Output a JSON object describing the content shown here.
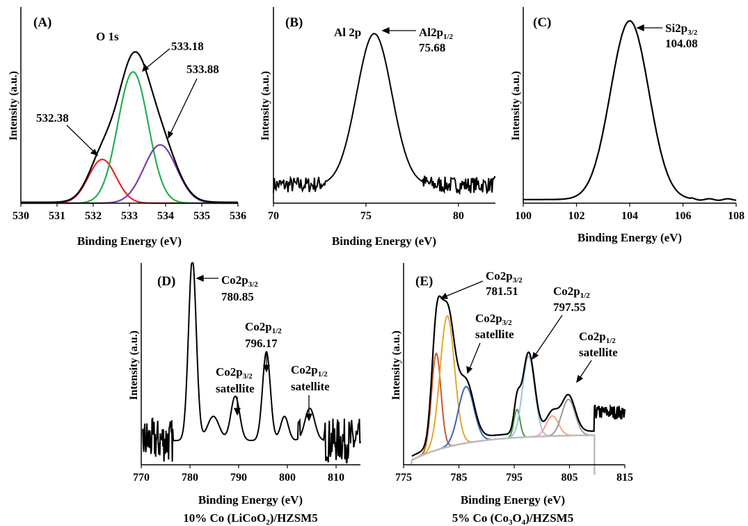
{
  "chart_data": [
    {
      "panel": "A",
      "type": "line",
      "label": "(A)",
      "peak_label": "O 1s",
      "xlabel": "Binding Energy (eV)",
      "ylabel": "Intensity (a.u.)",
      "xlim": [
        530,
        536
      ],
      "xticks": [
        "530",
        "531",
        "532",
        "533",
        "534",
        "535",
        "536"
      ],
      "colors": {
        "envelope": "#000000",
        "c532": "#e8262b",
        "c533": "#22b14c",
        "c534": "#7b3fa0"
      },
      "components": [
        {
          "center": 532.25,
          "height": 0.24,
          "sigma": 0.38,
          "color": "#e8262b"
        },
        {
          "center": 533.1,
          "height": 0.72,
          "sigma": 0.42,
          "color": "#22b14c"
        },
        {
          "center": 533.85,
          "height": 0.32,
          "sigma": 0.45,
          "color": "#7b3fa0"
        }
      ],
      "annotations": [
        {
          "text": "532.38",
          "x": 532.25,
          "y": 0.24
        },
        {
          "text": "533.18",
          "x": 533.1,
          "y": 0.72
        },
        {
          "text": "533.88",
          "x": 533.85,
          "y": 0.32
        }
      ]
    },
    {
      "panel": "B",
      "type": "line",
      "label": "(B)",
      "peak_label": "Al 2p",
      "xlabel": "Binding Energy (eV)",
      "ylabel": "Intensity (a.u.)",
      "xlim": [
        70,
        82
      ],
      "xticks": [
        "70",
        "75",
        "80"
      ],
      "peak": {
        "center": 75.45,
        "height": 0.83,
        "sigma": 0.95,
        "baseline": 0.1
      },
      "annotation": {
        "main": "Al2p",
        "sub": "1/2",
        "value": "75.68"
      }
    },
    {
      "panel": "C",
      "type": "line",
      "label": "(C)",
      "xlabel": "Binding Energy (eV)",
      "ylabel": "Intensity (a.u.)",
      "xlim": [
        100,
        108
      ],
      "xticks": [
        "100",
        "102",
        "104",
        "106",
        "108"
      ],
      "peak": {
        "center": 104.0,
        "height": 0.98,
        "sigma": 0.72,
        "baseline": 0.02
      },
      "annotation": {
        "main": "Si2p",
        "sub": "3/2",
        "value": "104.08"
      }
    },
    {
      "panel": "D",
      "type": "line",
      "label": "(D)",
      "xlabel": "Binding Energy (eV)",
      "ylabel": "Intensity (a.u.)",
      "caption_pre": "10% Co (LiCoO",
      "caption_sub": "2",
      "caption_post": ")/HZSM5",
      "xlim": [
        770,
        815
      ],
      "xticks": [
        "770",
        "780",
        "790",
        "800",
        "810"
      ],
      "peaks": [
        {
          "center": 780.5,
          "height": 0.9,
          "sigma": 0.8
        },
        {
          "center": 784.8,
          "height": 0.12,
          "sigma": 1.2
        },
        {
          "center": 789.3,
          "height": 0.22,
          "sigma": 0.9
        },
        {
          "center": 795.7,
          "height": 0.44,
          "sigma": 0.8
        },
        {
          "center": 799.4,
          "height": 0.12,
          "sigma": 0.8
        },
        {
          "center": 804.6,
          "height": 0.16,
          "sigma": 1.0
        }
      ],
      "annotations": [
        {
          "main": "Co2p",
          "sub": "3/2",
          "value": "780.85"
        },
        {
          "main": "Co2p",
          "sub": "1/2",
          "value": "796.17"
        },
        {
          "main": "Co2p",
          "sub": "3/2",
          "value": "satellite"
        },
        {
          "main": "Co2p",
          "sub": "1/2",
          "value": "satellite"
        }
      ]
    },
    {
      "panel": "E",
      "type": "line",
      "label": "(E)",
      "xlabel": "Binding Energy (eV)",
      "ylabel": "Intensity (a.u.)",
      "caption_pre": "5% Co (Co",
      "caption_sub": "3",
      "caption_mid": "O",
      "caption_sub2": "4",
      "caption_post": ")/HZSM5",
      "xlim": [
        775,
        815
      ],
      "xticks": [
        "775",
        "785",
        "795",
        "805",
        "815"
      ],
      "components": [
        {
          "center": 780.9,
          "height": 0.48,
          "sigma": 0.85,
          "color": "#c55a2b"
        },
        {
          "center": 782.9,
          "height": 0.65,
          "sigma": 1.3,
          "color": "#e0a92c"
        },
        {
          "center": 786.3,
          "height": 0.28,
          "sigma": 1.4,
          "color": "#3a66b0"
        },
        {
          "center": 795.5,
          "height": 0.14,
          "sigma": 0.55,
          "color": "#4e9a35"
        },
        {
          "center": 797.6,
          "height": 0.4,
          "sigma": 1.1,
          "color": "#9cc2e2"
        },
        {
          "center": 801.9,
          "height": 0.1,
          "sigma": 1.1,
          "color": "#f2a58a"
        },
        {
          "center": 804.8,
          "height": 0.18,
          "sigma": 1.2,
          "color": "#9a9a9a"
        }
      ],
      "annotations": [
        {
          "main": "Co2p",
          "sub": "3/2",
          "value": "781.51"
        },
        {
          "main": "Co2p",
          "sub": "3/2",
          "value": "satellite"
        },
        {
          "main": "Co2p",
          "sub": "1/2",
          "value": "797.55"
        },
        {
          "main": "Co2p",
          "sub": "1/2",
          "value": "satellite"
        }
      ]
    }
  ]
}
